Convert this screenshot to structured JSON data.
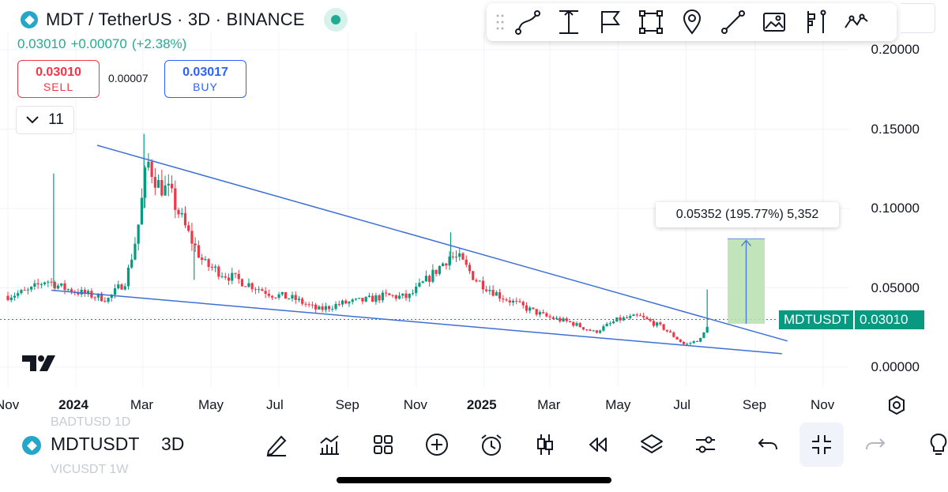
{
  "header": {
    "symbol_title": "MDT / TetherUS · 3D · BINANCE",
    "last_price": "0.03010",
    "change": "+0.00070",
    "change_pct": "(+2.38%)"
  },
  "trade": {
    "sell_price": "0.03010",
    "sell_label": "SELL",
    "spread": "0.00007",
    "buy_price": "0.03017",
    "buy_label": "BUY"
  },
  "indicators": {
    "count": "11"
  },
  "drawing_toolbar": {
    "tools": [
      "drag-handle",
      "curve-icon",
      "vertical-measure-icon",
      "flag-icon",
      "rectangle-icon",
      "location-pin-icon",
      "trend-line-icon",
      "image-icon",
      "long-position-icon",
      "path-icon"
    ]
  },
  "y_axis": {
    "labels": [
      "0.20000",
      "0.15000",
      "0.10000",
      "0.05000",
      "0.00000"
    ]
  },
  "x_axis": {
    "labels": [
      "Nov",
      "2024",
      "Mar",
      "May",
      "Jul",
      "Sep",
      "Nov",
      "2025",
      "Mar",
      "May",
      "Jul",
      "Sep",
      "Nov"
    ]
  },
  "measure": {
    "label": "0.05352 (195.77%) 5,352"
  },
  "price_tag": {
    "symbol": "MDTUSDT",
    "price": "0.03010"
  },
  "bottom_bar": {
    "symbol": "MDTUSDT",
    "interval": "3D",
    "ghost_top": "BADTUSD       1D",
    "ghost_bottom": "VICUSDT       1W",
    "tools": [
      "pen-icon",
      "indicators-chart-icon",
      "layout-grid-icon",
      "add-icon",
      "alarm-icon",
      "candles-icon",
      "replay-icon",
      "layers-icon",
      "settings-sliders-icon",
      "undo-icon",
      "collapse-icon",
      "redo-icon"
    ]
  },
  "colors": {
    "up": "#089981",
    "down": "#f23645",
    "trendline": "#3d6fd6",
    "accent": "#2962ff",
    "measure_fill": "#b6dfae"
  },
  "chart_data": {
    "type": "candlestick",
    "symbol": "MDTUSDT",
    "interval": "3D",
    "ylim": [
      0,
      0.2
    ],
    "x_range": [
      "2023-11",
      "2025-11"
    ],
    "series": [
      {
        "date": "2023-11-01",
        "close": 0.045
      },
      {
        "date": "2023-11-20",
        "close": 0.048
      },
      {
        "date": "2023-12-05",
        "close": 0.055
      },
      {
        "date": "2023-12-20",
        "close": 0.05
      },
      {
        "date": "2024-01-10",
        "close": 0.046
      },
      {
        "date": "2024-01-30",
        "close": 0.043
      },
      {
        "date": "2024-02-15",
        "close": 0.055
      },
      {
        "date": "2024-02-25",
        "close": 0.085
      },
      {
        "date": "2024-03-05",
        "close": 0.13
      },
      {
        "date": "2024-03-15",
        "close": 0.115
      },
      {
        "date": "2024-03-25",
        "close": 0.11
      },
      {
        "date": "2024-04-10",
        "close": 0.085
      },
      {
        "date": "2024-04-25",
        "close": 0.065
      },
      {
        "date": "2024-05-15",
        "close": 0.058
      },
      {
        "date": "2024-06-05",
        "close": 0.052
      },
      {
        "date": "2024-06-25",
        "close": 0.046
      },
      {
        "date": "2024-07-15",
        "close": 0.043
      },
      {
        "date": "2024-08-05",
        "close": 0.036
      },
      {
        "date": "2024-08-25",
        "close": 0.04
      },
      {
        "date": "2024-09-15",
        "close": 0.042
      },
      {
        "date": "2024-10-05",
        "close": 0.045
      },
      {
        "date": "2024-10-25",
        "close": 0.044
      },
      {
        "date": "2024-11-15",
        "close": 0.058
      },
      {
        "date": "2024-12-01",
        "close": 0.07
      },
      {
        "date": "2024-12-10",
        "close": 0.068
      },
      {
        "date": "2024-12-25",
        "close": 0.055
      },
      {
        "date": "2025-01-15",
        "close": 0.045
      },
      {
        "date": "2025-02-05",
        "close": 0.038
      },
      {
        "date": "2025-02-25",
        "close": 0.032
      },
      {
        "date": "2025-03-20",
        "close": 0.028
      },
      {
        "date": "2025-04-10",
        "close": 0.022
      },
      {
        "date": "2025-05-01",
        "close": 0.03
      },
      {
        "date": "2025-05-20",
        "close": 0.032
      },
      {
        "date": "2025-06-10",
        "close": 0.025
      },
      {
        "date": "2025-06-30",
        "close": 0.014
      },
      {
        "date": "2025-07-15",
        "close": 0.018
      },
      {
        "date": "2025-07-22",
        "close": 0.0301
      }
    ],
    "annotations": [
      {
        "type": "trendline",
        "label": "upper falling wedge line"
      },
      {
        "type": "trendline",
        "label": "lower falling wedge line"
      },
      {
        "type": "measure",
        "text": "0.05352 (195.77%) 5,352",
        "from": 0.0274,
        "to": 0.0809
      },
      {
        "type": "price_line",
        "value": 0.0301
      }
    ]
  }
}
